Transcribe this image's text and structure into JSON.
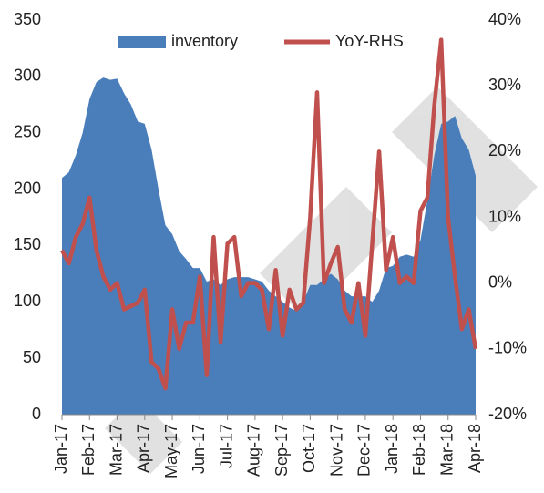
{
  "chart_data": {
    "type": "area-line",
    "categories": [
      "Jan-17",
      null,
      null,
      null,
      "Feb-17",
      null,
      null,
      null,
      "Mar-17",
      null,
      null,
      null,
      "Apr-17",
      null,
      null,
      null,
      "May-17",
      null,
      null,
      null,
      "Jun-17",
      null,
      null,
      null,
      "Jul-17",
      null,
      null,
      null,
      "Aug-17",
      null,
      null,
      null,
      "Sep-17",
      null,
      null,
      null,
      "Oct-17",
      null,
      null,
      null,
      "Nov-17",
      null,
      null,
      null,
      "Dec-17",
      null,
      null,
      null,
      "Jan-18",
      null,
      null,
      null,
      "Feb-18",
      null,
      null,
      null,
      "Mar-18",
      null,
      null,
      null,
      "Apr-18"
    ],
    "series": [
      {
        "name": "inventory",
        "color": "#4a7ebb",
        "values": [
          210,
          215,
          230,
          250,
          280,
          295,
          299,
          297,
          298,
          285,
          275,
          260,
          258,
          235,
          200,
          168,
          160,
          145,
          138,
          130,
          130,
          118,
          120,
          115,
          120,
          122,
          122,
          122,
          120,
          118,
          110,
          105,
          100,
          95,
          92,
          100,
          115,
          115,
          120,
          125,
          120,
          110,
          105,
          105,
          105,
          100,
          110,
          130,
          132,
          140,
          142,
          140,
          155,
          190,
          230,
          258,
          260,
          265,
          245,
          235,
          212
        ]
      },
      {
        "name": "YoY-RHS",
        "color": "#c0504d",
        "axis": "y2",
        "values": [
          5,
          3,
          7,
          9,
          13,
          5,
          1,
          -1,
          0,
          -4,
          -3.5,
          -3,
          -1,
          -12,
          -13,
          -16,
          -4,
          -10,
          -6,
          -6,
          1,
          -14,
          7,
          -9,
          6,
          7,
          -2,
          0,
          0,
          -1,
          -7,
          2,
          -8,
          -1,
          -4,
          -3,
          10,
          29,
          0,
          3,
          5.5,
          -4,
          -6,
          0,
          -8,
          6,
          20,
          2,
          7,
          0,
          1,
          0,
          11,
          13,
          27,
          37,
          10,
          1,
          -7,
          -4,
          -10
        ]
      }
    ],
    "ylim": [
      0,
      350
    ],
    "yticks": [
      0,
      50,
      100,
      150,
      200,
      250,
      300,
      350
    ],
    "y2lim": [
      -20,
      40
    ],
    "y2ticks": [
      {
        "value": -20,
        "label": "-20%"
      },
      {
        "value": -10,
        "label": "-10%"
      },
      {
        "value": 0,
        "label": "0%"
      },
      {
        "value": 10,
        "label": "10%"
      },
      {
        "value": 20,
        "label": "20%"
      },
      {
        "value": 30,
        "label": "30%"
      },
      {
        "value": 40,
        "label": "40%"
      }
    ],
    "legend": "top"
  }
}
